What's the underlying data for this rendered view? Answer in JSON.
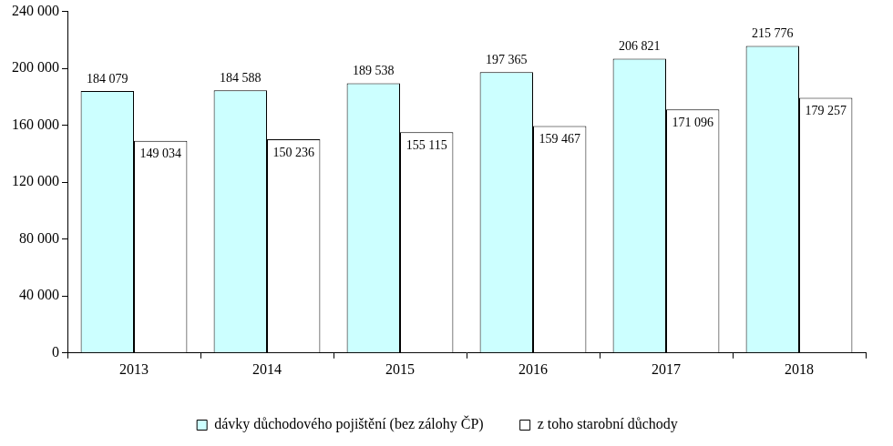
{
  "chart_data": {
    "type": "bar",
    "categories": [
      "2013",
      "2014",
      "2015",
      "2016",
      "2017",
      "2018"
    ],
    "series": [
      {
        "name": "dávky důchodového pojištění (bez zálohy ČP)",
        "color": "#ccffff",
        "values": [
          184079,
          184588,
          189538,
          197365,
          206821,
          215776
        ],
        "value_labels": [
          "184 079",
          "184 588",
          "189 538",
          "197 365",
          "206 821",
          "215 776"
        ]
      },
      {
        "name": "z toho starobní důchody",
        "color": "#ffffff",
        "values": [
          149034,
          150236,
          155115,
          159467,
          171096,
          179257
        ],
        "value_labels": [
          "149 034",
          "150 236",
          "155 115",
          "159 467",
          "171 096",
          "179 257"
        ]
      }
    ],
    "ylim": [
      0,
      240000
    ],
    "yticks": [
      0,
      {
        "value": 40000,
        "label": "40 000"
      },
      {
        "value": 80000,
        "label": "80 000"
      },
      {
        "value": 120000,
        "label": "120 000"
      },
      {
        "value": 160000,
        "label": "160 000"
      },
      {
        "value": 200000,
        "label": "200 000"
      },
      {
        "value": 240000,
        "label": "240 000"
      }
    ],
    "grid": false,
    "legend": "bottom",
    "data_labels": true
  }
}
